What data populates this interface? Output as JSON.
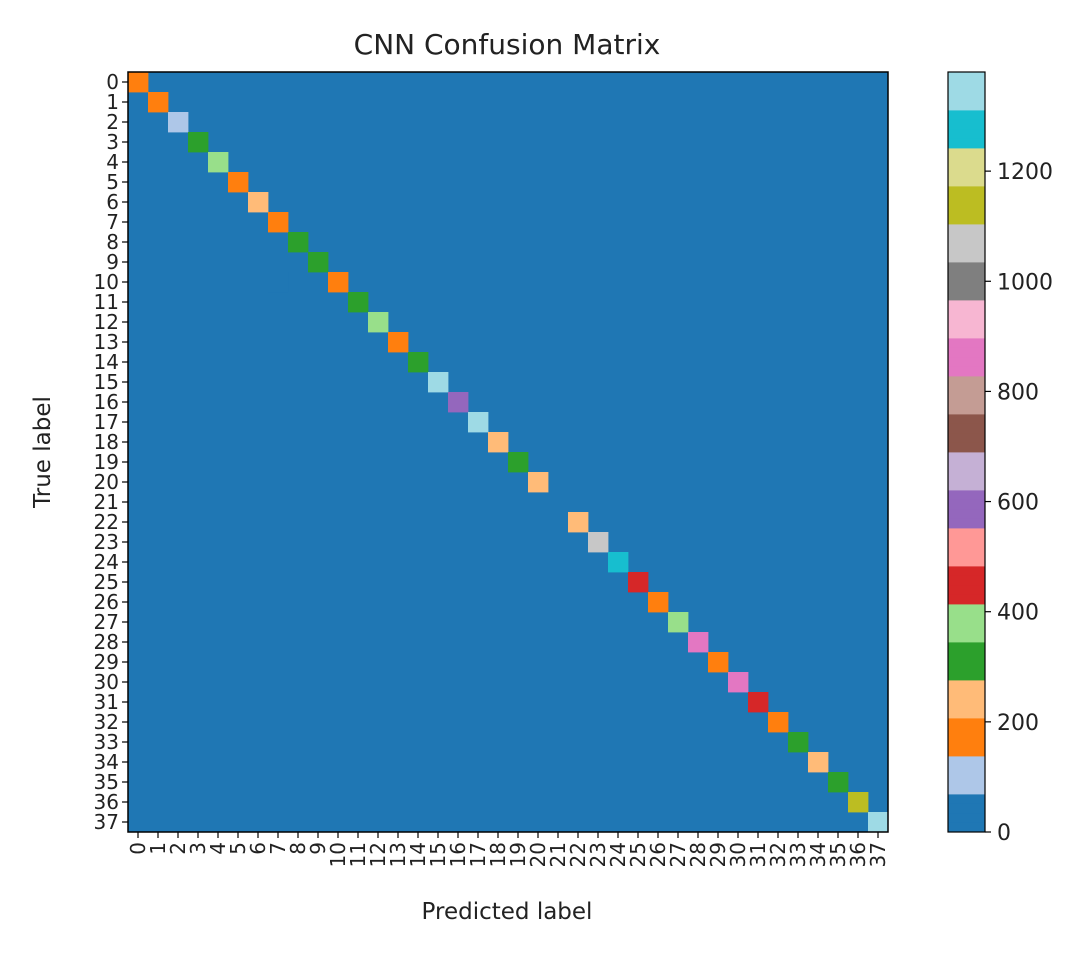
{
  "chart_data": {
    "type": "heatmap",
    "title": "CNN Confusion Matrix",
    "xlabel": "Predicted label",
    "ylabel": "True label",
    "categories": [
      "0",
      "1",
      "2",
      "3",
      "4",
      "5",
      "6",
      "7",
      "8",
      "9",
      "10",
      "11",
      "12",
      "13",
      "14",
      "15",
      "16",
      "17",
      "18",
      "19",
      "20",
      "21",
      "22",
      "23",
      "24",
      "25",
      "26",
      "27",
      "28",
      "29",
      "30",
      "31",
      "32",
      "33",
      "34",
      "35",
      "36",
      "37"
    ],
    "colormap": "tab20",
    "value_range": [
      0,
      1380
    ],
    "colorbar_ticks": [
      0,
      200,
      400,
      600,
      800,
      1000,
      1200
    ],
    "colormap_colors": [
      "#1f77b4",
      "#aec7e8",
      "#ff7f0e",
      "#ffbb78",
      "#2ca02c",
      "#98df8a",
      "#d62728",
      "#ff9896",
      "#9467bd",
      "#c5b0d5",
      "#8c564b",
      "#c49c94",
      "#e377c2",
      "#f7b6d2",
      "#7f7f7f",
      "#c7c7c7",
      "#bcbd22",
      "#dbdb8d",
      "#17becf",
      "#9edae5"
    ],
    "diagonal_values": [
      180,
      190,
      75,
      280,
      350,
      190,
      270,
      190,
      320,
      310,
      190,
      280,
      350,
      170,
      280,
      1370,
      620,
      1340,
      230,
      330,
      230,
      0,
      215,
      1100,
      1310,
      420,
      170,
      380,
      870,
      180,
      840,
      480,
      200,
      280,
      270,
      300,
      1130,
      1370
    ],
    "off_diagonal": [
      {
        "true": 10,
        "predicted": 7,
        "value": 40
      }
    ]
  }
}
